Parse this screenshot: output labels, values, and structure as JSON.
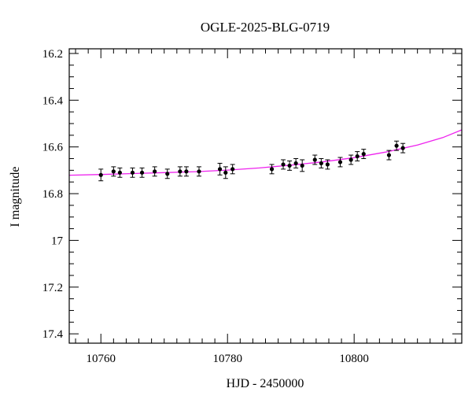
{
  "chart_data": {
    "type": "scatter",
    "title": "OGLE-2025-BLG-0719",
    "xlabel": "HJD - 2450000",
    "ylabel": "I magnitude",
    "xlim": [
      10755,
      10817
    ],
    "ylim": [
      17.44,
      16.18
    ],
    "y_inverted": true,
    "grid": false,
    "x_ticks": [
      10760,
      10780,
      10800
    ],
    "x_tick_labels": [
      "10760",
      "10780",
      "10800"
    ],
    "y_ticks": [
      16.2,
      16.4,
      16.6,
      16.8,
      17.0,
      17.2,
      17.4
    ],
    "y_tick_labels": [
      "16.2",
      "16.4",
      "16.6",
      "16.8",
      "17",
      "17.2",
      "17.4"
    ],
    "series": [
      {
        "kind": "points_with_errorbars",
        "color": "#000000",
        "points": [
          {
            "x": 10760.0,
            "y": 16.72,
            "err": 0.025
          },
          {
            "x": 10762.0,
            "y": 16.705,
            "err": 0.02
          },
          {
            "x": 10763.0,
            "y": 16.71,
            "err": 0.02
          },
          {
            "x": 10765.0,
            "y": 16.71,
            "err": 0.02
          },
          {
            "x": 10766.5,
            "y": 16.71,
            "err": 0.02
          },
          {
            "x": 10768.5,
            "y": 16.705,
            "err": 0.02
          },
          {
            "x": 10770.5,
            "y": 16.715,
            "err": 0.02
          },
          {
            "x": 10772.5,
            "y": 16.705,
            "err": 0.02
          },
          {
            "x": 10773.5,
            "y": 16.705,
            "err": 0.02
          },
          {
            "x": 10775.5,
            "y": 16.705,
            "err": 0.02
          },
          {
            "x": 10778.8,
            "y": 16.695,
            "err": 0.025
          },
          {
            "x": 10779.7,
            "y": 16.71,
            "err": 0.025
          },
          {
            "x": 10780.8,
            "y": 16.695,
            "err": 0.02
          },
          {
            "x": 10787.0,
            "y": 16.695,
            "err": 0.02
          },
          {
            "x": 10788.8,
            "y": 16.675,
            "err": 0.02
          },
          {
            "x": 10789.8,
            "y": 16.68,
            "err": 0.02
          },
          {
            "x": 10790.8,
            "y": 16.67,
            "err": 0.02
          },
          {
            "x": 10791.8,
            "y": 16.68,
            "err": 0.025
          },
          {
            "x": 10793.8,
            "y": 16.655,
            "err": 0.02
          },
          {
            "x": 10794.8,
            "y": 16.67,
            "err": 0.02
          },
          {
            "x": 10795.8,
            "y": 16.675,
            "err": 0.02
          },
          {
            "x": 10797.8,
            "y": 16.665,
            "err": 0.02
          },
          {
            "x": 10799.5,
            "y": 16.655,
            "err": 0.02
          },
          {
            "x": 10800.5,
            "y": 16.64,
            "err": 0.02
          },
          {
            "x": 10801.5,
            "y": 16.63,
            "err": 0.02
          },
          {
            "x": 10805.5,
            "y": 16.635,
            "err": 0.02
          },
          {
            "x": 10806.7,
            "y": 16.595,
            "err": 0.02
          },
          {
            "x": 10807.7,
            "y": 16.605,
            "err": 0.02
          }
        ]
      },
      {
        "kind": "model_curve",
        "color": "#ee22ee",
        "points": [
          {
            "x": 10755,
            "y": 16.721
          },
          {
            "x": 10760,
            "y": 16.718
          },
          {
            "x": 10765,
            "y": 16.714
          },
          {
            "x": 10770,
            "y": 16.71
          },
          {
            "x": 10775,
            "y": 16.706
          },
          {
            "x": 10780,
            "y": 16.699
          },
          {
            "x": 10785,
            "y": 16.69
          },
          {
            "x": 10790,
            "y": 16.678
          },
          {
            "x": 10795,
            "y": 16.664
          },
          {
            "x": 10800,
            "y": 16.646
          },
          {
            "x": 10805,
            "y": 16.622
          },
          {
            "x": 10810,
            "y": 16.592
          },
          {
            "x": 10814,
            "y": 16.56
          },
          {
            "x": 10817,
            "y": 16.527
          }
        ]
      }
    ]
  }
}
